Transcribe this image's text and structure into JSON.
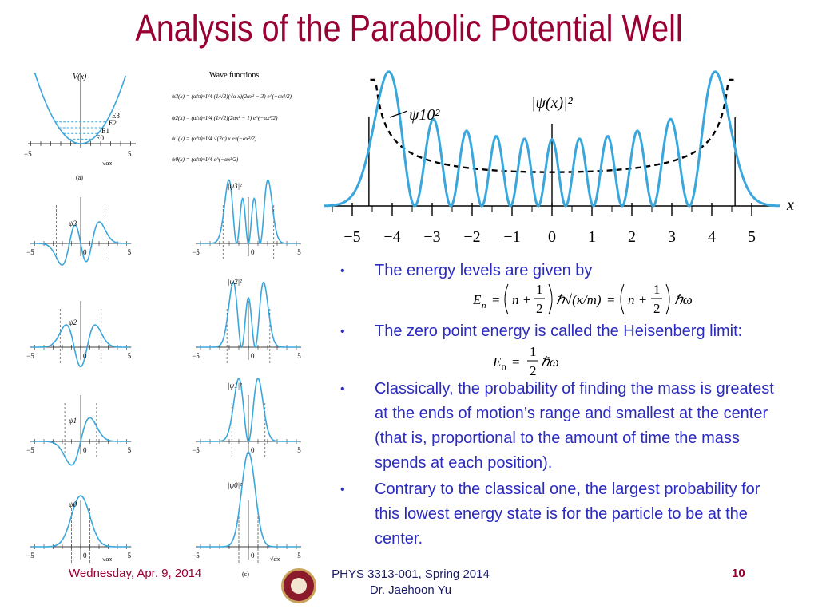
{
  "slide": {
    "title": "Analysis of the Parabolic Potential Well"
  },
  "colors": {
    "title": "#990033",
    "bullet_text": "#2b2bbf",
    "curve": "#3aa7dc",
    "footer_mid": "#1a1a66"
  },
  "figure_left": {
    "vx_label": "V(x)",
    "wave_functions_title": "Wave functions",
    "energy_labels": [
      "E3",
      "E2",
      "E1",
      "E0"
    ],
    "axis_label": "√αx",
    "panel_a": "(a)",
    "panel_c": "(c)",
    "tick_neg5": "−5",
    "tick_0": "0",
    "tick_5": "5",
    "psi3_eq": "ψ3(x) = (α/π)^1/4 (1/√3)(√α x)(2αx² − 3) e^(−αx²/2)",
    "psi2_eq": "ψ2(x) = (α/π)^1/4 (1/√2)(2αx² − 1) e^(−αx²/2)",
    "psi1_eq": "ψ1(x) = (α/π)^1/4 √(2α) x e^(−αx²/2)",
    "psi0_eq": "ψ0(x) = (α/π)^1/4 e^(−αx²/2)",
    "psi_labels": [
      "ψ3",
      "ψ2",
      "ψ1",
      "ψ0"
    ],
    "prob_labels": [
      "|ψ3|²",
      "|ψ2|²",
      "|ψ1|²",
      "|ψ0|²"
    ]
  },
  "figure_right": {
    "prob_label": "|ψ(x)|²",
    "psi10_label": "ψ10²",
    "axis_var": "x",
    "ticks": [
      "−5",
      "−4",
      "−3",
      "−2",
      "−1",
      "0",
      "1",
      "2",
      "3",
      "4",
      "5"
    ]
  },
  "bullets": [
    {
      "text": "The energy levels are given by"
    },
    {
      "text": "The zero point energy is called the Heisenberg limit:"
    },
    {
      "text": "Classically, the probability of finding the mass is greatest at the ends of motion’s range and smallest at the center (that is, proportional to the amount of time the mass spends at each position)."
    },
    {
      "text": "Contrary to the classical one, the largest probability for this lowest energy state is for the particle to be at the center."
    }
  ],
  "equations": {
    "En_lhs": "E",
    "En_sub": "n",
    "eq1": "=",
    "n_plus": "n +",
    "half_num": "1",
    "half_den": "2",
    "hbar_sqrt": "ℏ√(κ/m)",
    "eq2": "=",
    "hbar_omega": "ℏω",
    "E0_lhs": "E",
    "E0_sub": "0"
  },
  "footer": {
    "date": "Wednesday, Apr. 9, 2014",
    "course": "PHYS 3313-001, Spring 2014",
    "instructor": "Dr. Jaehoon Yu",
    "page": "10"
  }
}
